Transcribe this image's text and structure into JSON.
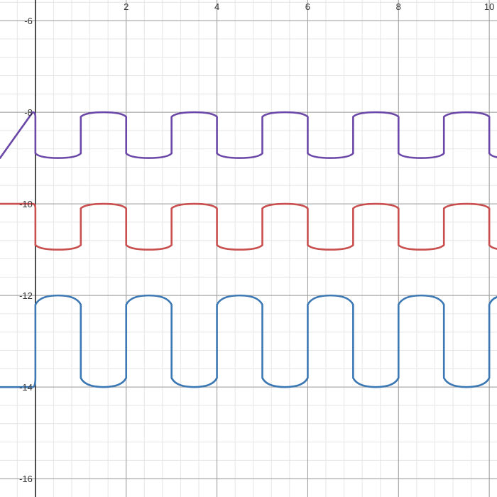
{
  "chart_data": {
    "type": "line",
    "title": "",
    "xlabel": "",
    "ylabel": "",
    "xlim": [
      -0.78,
      10.17
    ],
    "ylim": [
      -16.4,
      -5.55
    ],
    "x_ticks": [
      2,
      4,
      6,
      8,
      10
    ],
    "x_tick_labels": [
      "2",
      "4",
      "6",
      "8",
      "10"
    ],
    "y_ticks": [
      -6,
      -8,
      -10,
      -12,
      -14,
      -16
    ],
    "y_tick_labels": [
      "-6",
      "-8",
      "-10",
      "-12",
      "-14",
      "-16"
    ],
    "grid": true,
    "minor_grid_step": 0.4,
    "legend": "none",
    "series": [
      {
        "color": "#6b48a8",
        "period": 2,
        "high": -8,
        "low": -9,
        "rises_at": [
          -1,
          1,
          3,
          5,
          7,
          9
        ],
        "falls_at": [
          0,
          2,
          4,
          6,
          8,
          10
        ],
        "x": [
          -0.78,
          0,
          0.02,
          0.5,
          0.98,
          1,
          1.02,
          1.5,
          1.98,
          2,
          2.02,
          2.5,
          2.98,
          3,
          3.02,
          3.5,
          3.98,
          4,
          4.02,
          4.5,
          4.98,
          5,
          5.02,
          5.5,
          5.98,
          6,
          6.02,
          6.5,
          6.98,
          7,
          7.02,
          7.5,
          7.98,
          8,
          8.02,
          8.5,
          8.98,
          9,
          9.02,
          9.5,
          9.98,
          10,
          10.17
        ],
        "y": [
          -9,
          -9,
          -8.1,
          -8,
          -8.1,
          -9,
          -8.9,
          -9,
          -8.9,
          -8,
          -8.1,
          -8,
          -8.1,
          -9,
          -8.9,
          -9,
          -8.9,
          -8,
          -8.1,
          -8,
          -8.1,
          -9,
          -8.9,
          -9,
          -8.9,
          -8,
          -8.1,
          -8,
          -8.1,
          -9,
          -8.9,
          -9,
          -8.9,
          -8,
          -8.1,
          -8,
          -8.1,
          -9,
          -8.9,
          -9,
          -8.9,
          -8,
          -8.1
        ]
      },
      {
        "color": "#c94f4f",
        "period": 2,
        "high": -10,
        "low": -11,
        "rises_at": [
          1,
          3,
          5,
          7,
          9
        ],
        "falls_at": [
          0,
          2,
          4,
          6,
          8,
          10
        ],
        "x": [
          -0.78,
          0,
          0.02,
          0.5,
          0.98,
          1,
          1.02,
          1.5,
          1.98,
          2,
          2.02,
          2.5,
          2.98,
          3,
          3.02,
          3.5,
          3.98,
          4,
          4.02,
          4.5,
          4.98,
          5,
          5.02,
          5.5,
          5.98,
          6,
          6.02,
          6.5,
          6.98,
          7,
          7.02,
          7.5,
          7.98,
          8,
          8.02,
          8.5,
          8.98,
          9,
          9.02,
          9.5,
          9.98,
          10,
          10.17
        ],
        "y": [
          -10,
          -10.9,
          -10.9,
          -11,
          -10.9,
          -10.1,
          -10,
          -10,
          -10.1,
          -10.9,
          -10.9,
          -11,
          -10.9,
          -10.1,
          -10,
          -10,
          -10.1,
          -10.9,
          -10.9,
          -11,
          -10.9,
          -10.1,
          -10,
          -10,
          -10.1,
          -10.9,
          -10.9,
          -11,
          -10.9,
          -10.1,
          -10,
          -10,
          -10.1,
          -10.9,
          -10.9,
          -11,
          -10.9,
          -10.1,
          -10,
          -10,
          -10.1,
          -10.9,
          -11
        ]
      },
      {
        "color": "#3c78b4",
        "period": 2,
        "high": -12,
        "low": -14,
        "rises_at": [
          0,
          2,
          4,
          6,
          8,
          10
        ],
        "falls_at": [
          1,
          3,
          5,
          7,
          9
        ],
        "x": [
          -0.78,
          -0.02,
          0,
          0.02,
          0.5,
          0.98,
          1,
          1.02,
          1.5,
          1.98,
          2,
          2.02,
          2.5,
          2.98,
          3,
          3.02,
          3.5,
          3.98,
          4,
          4.02,
          4.5,
          4.98,
          5,
          5.02,
          5.5,
          5.98,
          6,
          6.02,
          6.5,
          6.98,
          7,
          7.02,
          7.5,
          7.98,
          8,
          8.02,
          8.5,
          8.98,
          9,
          9.02,
          9.5,
          9.98,
          10,
          10.17
        ],
        "y": [
          -14,
          -13.9,
          -13,
          -12.1,
          -12,
          -12.1,
          -13,
          -13.9,
          -14,
          -13.9,
          -13,
          -12.1,
          -12,
          -12.1,
          -13,
          -13.9,
          -14,
          -13.9,
          -13,
          -12.1,
          -12,
          -12.1,
          -13,
          -13.9,
          -14,
          -13.9,
          -13,
          -12.1,
          -12,
          -12.1,
          -13,
          -13.9,
          -14,
          -13.9,
          -13,
          -12.1,
          -12,
          -12.1,
          -13,
          -13.9,
          -14,
          -13.9,
          -13,
          -12.1
        ]
      }
    ]
  }
}
